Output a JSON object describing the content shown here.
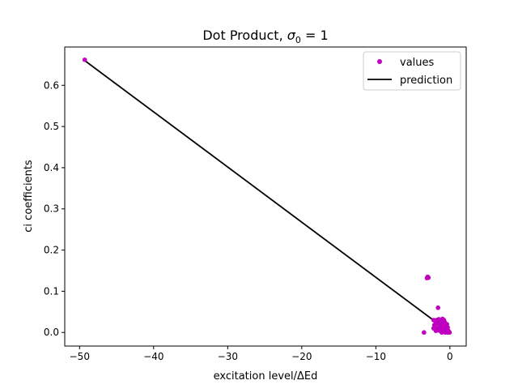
{
  "chart_data": {
    "type": "scatter",
    "title": {
      "prefix": "Dot Product, ",
      "symbol": "σ",
      "subscript": "0",
      "suffix": " = 1"
    },
    "xlabel": "excitation level/ΔEd",
    "ylabel": "ci coefficients",
    "xlim": [
      -52,
      2.2
    ],
    "ylim": [
      -0.033,
      0.693
    ],
    "xticks": [
      {
        "value": -50,
        "label": "−50"
      },
      {
        "value": -40,
        "label": "−40"
      },
      {
        "value": -30,
        "label": "−30"
      },
      {
        "value": -20,
        "label": "−20"
      },
      {
        "value": -10,
        "label": "−10"
      },
      {
        "value": 0,
        "label": "0"
      }
    ],
    "yticks": [
      {
        "value": 0.0,
        "label": "0.0"
      },
      {
        "value": 0.1,
        "label": "0.1"
      },
      {
        "value": 0.2,
        "label": "0.2"
      },
      {
        "value": 0.3,
        "label": "0.3"
      },
      {
        "value": 0.4,
        "label": "0.4"
      },
      {
        "value": 0.5,
        "label": "0.5"
      },
      {
        "value": 0.6,
        "label": "0.6"
      }
    ],
    "legend_position": "top-right",
    "grid": false,
    "series": [
      {
        "name": "values",
        "kind": "scatter",
        "color": "#bf00bf",
        "points": [
          [
            -49.3,
            0.662
          ],
          [
            -3.1,
            0.132
          ],
          [
            -3.0,
            0.135
          ],
          [
            -2.9,
            0.133
          ],
          [
            -1.6,
            0.06
          ],
          [
            -3.5,
            0.0
          ],
          [
            -2.2,
            0.03
          ],
          [
            -2.0,
            0.028
          ],
          [
            -1.8,
            0.03
          ],
          [
            -1.5,
            0.032
          ],
          [
            -1.3,
            0.03
          ],
          [
            -1.0,
            0.033
          ],
          [
            -0.8,
            0.03
          ],
          [
            -2.1,
            0.018
          ],
          [
            -1.9,
            0.02
          ],
          [
            -1.7,
            0.022
          ],
          [
            -1.5,
            0.02
          ],
          [
            -1.2,
            0.022
          ],
          [
            -0.9,
            0.02
          ],
          [
            -0.6,
            0.018
          ],
          [
            -0.4,
            0.02
          ],
          [
            -2.2,
            0.01
          ],
          [
            -2.0,
            0.012
          ],
          [
            -1.8,
            0.008
          ],
          [
            -1.6,
            0.01
          ],
          [
            -1.4,
            0.012
          ],
          [
            -1.1,
            0.01
          ],
          [
            -0.9,
            0.012
          ],
          [
            -0.7,
            0.01
          ],
          [
            -0.5,
            0.01
          ],
          [
            -0.3,
            0.012
          ],
          [
            -1.9,
            0.004
          ],
          [
            -1.6,
            0.005
          ],
          [
            -1.3,
            0.004
          ],
          [
            -1.0,
            0.005
          ],
          [
            -0.8,
            0.004
          ],
          [
            -0.6,
            0.003
          ],
          [
            -0.4,
            0.005
          ],
          [
            -0.2,
            0.004
          ],
          [
            -1.2,
            0.015
          ],
          [
            -0.7,
            0.025
          ],
          [
            -1.4,
            0.026
          ],
          [
            -0.5,
            0.016
          ],
          [
            -1.1,
            0.0
          ],
          [
            -0.9,
            0.001
          ],
          [
            -0.6,
            0.0
          ],
          [
            -0.4,
            0.001
          ],
          [
            -0.3,
            0.0
          ],
          [
            -0.2,
            0.002
          ],
          [
            -0.1,
            0.001
          ],
          [
            -0.05,
            0.0
          ]
        ]
      },
      {
        "name": "prediction",
        "kind": "line",
        "color": "#000000",
        "points": [
          [
            -49.3,
            0.66
          ],
          [
            0,
            0.0
          ]
        ]
      }
    ]
  }
}
